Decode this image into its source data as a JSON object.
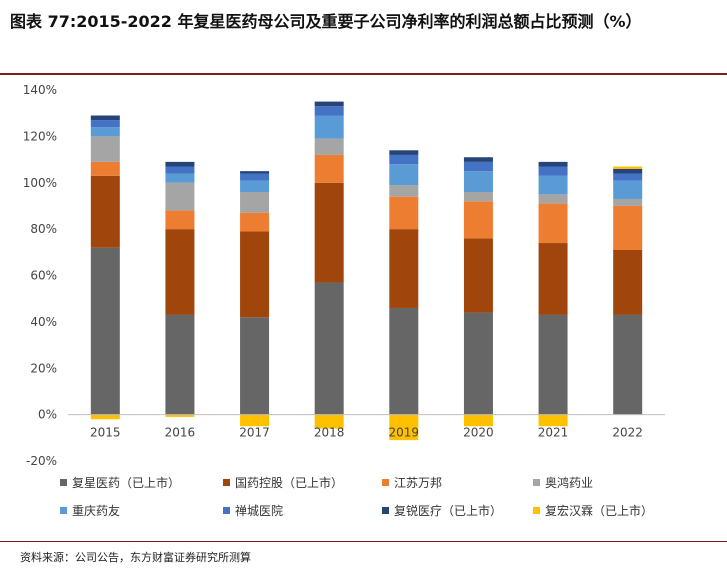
{
  "title": "图表 77:2015-2022 年复星医药母公司及重要子公司净利率的利润总额占比预测（%）",
  "source": "资料来源：公司公告，东方财富证券研究所测算",
  "chart_data": {
    "type": "bar",
    "stacked": true,
    "categories": [
      "2015",
      "2016",
      "2017",
      "2018",
      "2019",
      "2020",
      "2021",
      "2022"
    ],
    "y_ticks": [
      "140%",
      "120%",
      "100%",
      "80%",
      "60%",
      "40%",
      "20%",
      "0%",
      "-20%"
    ],
    "ylim": [
      -20,
      140
    ],
    "grid": false,
    "legend_position": "bottom",
    "series": [
      {
        "name": "复星医药（已上市）",
        "color": "#666666",
        "values": [
          72,
          43,
          42,
          57,
          46,
          44,
          43,
          43
        ]
      },
      {
        "name": "国药控股（已上市）",
        "color": "#a0460c",
        "values": [
          31,
          37,
          37,
          43,
          34,
          32,
          31,
          28
        ]
      },
      {
        "name": "江苏万邦",
        "color": "#ed7d31",
        "values": [
          6,
          8,
          8,
          12,
          14,
          16,
          17,
          19
        ]
      },
      {
        "name": "奥鸿药业",
        "color": "#a5a5a5",
        "values": [
          11,
          12,
          9,
          7,
          5,
          4,
          4,
          3
        ]
      },
      {
        "name": "重庆药友",
        "color": "#5b9bd5",
        "values": [
          4,
          4,
          5,
          10,
          9,
          9,
          8,
          8
        ]
      },
      {
        "name": "禅城医院",
        "color": "#4472c4",
        "values": [
          3,
          3,
          3,
          4,
          4,
          4,
          4,
          3
        ]
      },
      {
        "name": "复锐医疗（已上市）",
        "color": "#264478",
        "values": [
          2,
          2,
          1,
          2,
          2,
          2,
          2,
          2
        ]
      },
      {
        "name": "复宏汉霖（已上市）",
        "color": "#ffc000",
        "values": [
          -2,
          -1,
          -5,
          -6,
          -11,
          -5,
          -5,
          1
        ]
      }
    ]
  }
}
